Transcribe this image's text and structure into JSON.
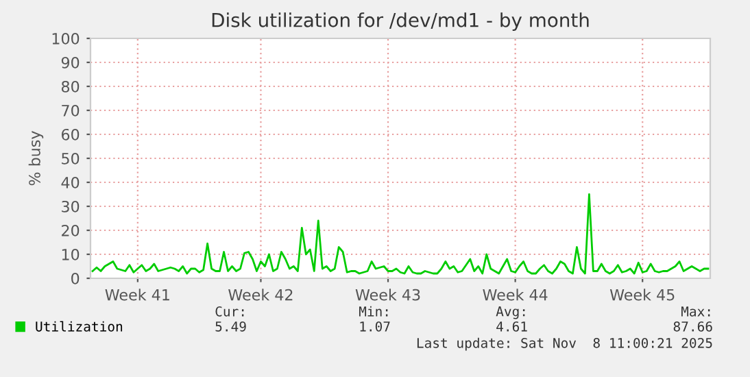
{
  "chart_data": {
    "type": "line",
    "title": "Disk utilization for /dev/md1 - by month",
    "ylabel": "% busy",
    "categories": [
      null,
      null,
      null,
      null,
      null,
      null,
      null,
      null,
      null,
      null,
      null,
      "Week 41",
      null,
      null,
      null,
      null,
      null,
      null,
      null,
      null,
      null,
      null,
      null,
      null,
      null,
      null,
      null,
      null,
      null,
      null,
      null,
      null,
      null,
      null,
      null,
      null,
      null,
      null,
      null,
      null,
      null,
      "Week 42",
      null,
      null,
      null,
      null,
      null,
      null,
      null,
      null,
      null,
      null,
      null,
      null,
      null,
      null,
      null,
      null,
      null,
      null,
      null,
      null,
      null,
      null,
      null,
      null,
      null,
      null,
      null,
      null,
      null,
      null,
      "Week 43",
      null,
      null,
      null,
      null,
      null,
      null,
      null,
      null,
      null,
      null,
      null,
      null,
      null,
      null,
      null,
      null,
      null,
      null,
      null,
      null,
      null,
      null,
      null,
      null,
      null,
      null,
      null,
      null,
      null,
      null,
      "Week 44",
      null,
      null,
      null,
      null,
      null,
      null,
      null,
      null,
      null,
      null,
      null,
      null,
      null,
      null,
      null,
      null,
      null,
      null,
      null,
      null,
      null,
      null,
      null,
      null,
      null,
      null,
      null,
      null,
      null,
      null,
      "Week 45",
      null,
      null,
      null,
      null,
      null,
      null,
      null,
      null,
      null,
      null,
      null,
      null,
      null,
      null,
      null,
      null
    ],
    "series": [
      {
        "name": "Utilization",
        "color": "#00cc00",
        "values": [
          3,
          4.5,
          3,
          5,
          6,
          7,
          4,
          3.5,
          3,
          5.5,
          2.5,
          4,
          5.5,
          3,
          4,
          6,
          3,
          3.5,
          4,
          4.5,
          4,
          3,
          5,
          2,
          4,
          4,
          2.5,
          3.5,
          14.5,
          4,
          3,
          3,
          11,
          3,
          5,
          3,
          4,
          10.5,
          11,
          8,
          3,
          7,
          5,
          10,
          3,
          4,
          11,
          8,
          4,
          5,
          3,
          21,
          10,
          12,
          3,
          24,
          4,
          5,
          3,
          4,
          13,
          11,
          2.5,
          3,
          3,
          2,
          2.5,
          3,
          7,
          4,
          4.5,
          5,
          3,
          3,
          4,
          2.5,
          2,
          5,
          2.5,
          2,
          2,
          3,
          2.5,
          2,
          2,
          4,
          7,
          4,
          5,
          2.5,
          3,
          5.5,
          8,
          3,
          5,
          2,
          10,
          4,
          3,
          2,
          5,
          8,
          3,
          2.5,
          5,
          7,
          3,
          2,
          2,
          4,
          5.5,
          3,
          2,
          4,
          7,
          6,
          3,
          2,
          13,
          4,
          2,
          35,
          3,
          3,
          6,
          3,
          2,
          3,
          5.5,
          2.5,
          3,
          4,
          2,
          6.5,
          2.5,
          3,
          6,
          3,
          2.5,
          3,
          3,
          4,
          5,
          7,
          3,
          4,
          5,
          4,
          3,
          4,
          4
        ]
      }
    ],
    "ylim": [
      0,
      100
    ],
    "yticks": [
      0,
      10,
      20,
      30,
      40,
      50,
      60,
      70,
      80,
      90,
      100
    ],
    "grid": true,
    "legend": "bottom",
    "marker": "none",
    "line_style": "solid",
    "annotations": [
      "Cur:",
      "Min:",
      "Avg:",
      "Max:",
      "5.49",
      "1.07",
      "4.61",
      "87.66",
      "Last update: Sat Nov  8 11:00:21 2025"
    ]
  }
}
